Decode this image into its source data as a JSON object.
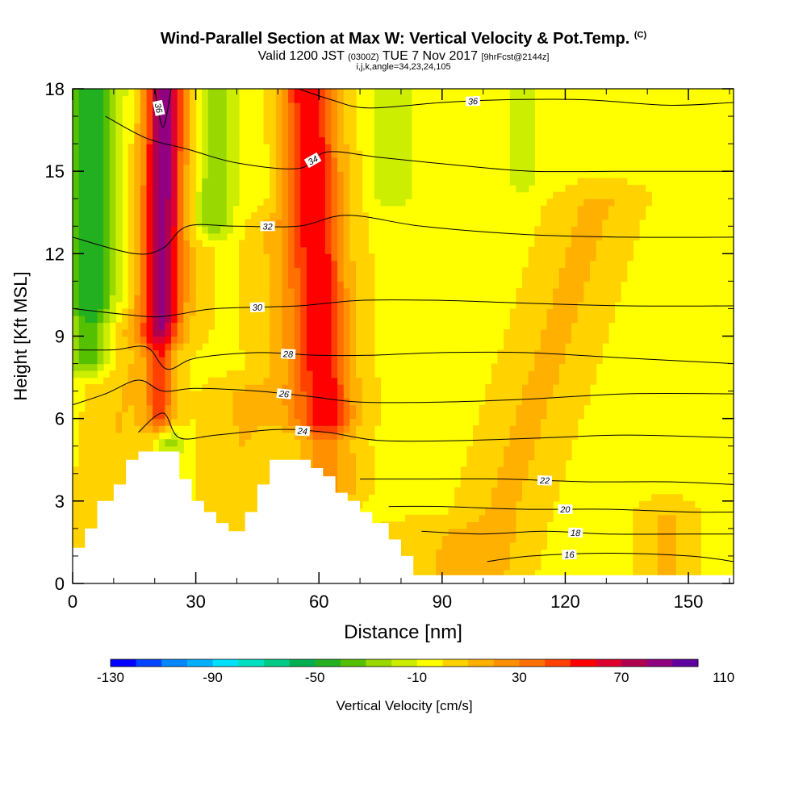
{
  "title": {
    "main": "Wind-Parallel Section at Max W: Vertical Velocity & Pot.Temp.",
    "main_suffix": "(C)",
    "valid_prefix": "Valid 1200 JST",
    "valid_utc": "(0300Z)",
    "valid_date": "TUE 7 Nov 2017",
    "forecast": "[9hrFcst@2144z]",
    "line3": "i,j,k,angle=34,23,24,105"
  },
  "colors": {
    "background": "#ffffff",
    "field_default": "#ffff00"
  },
  "chart_data": {
    "type": "heatmap",
    "xlabel": "Distance [nm]",
    "ylabel": "Height [Kft MSL]",
    "xlim": [
      0,
      161
    ],
    "ylim": [
      0,
      18
    ],
    "xticks": [
      "0",
      "30",
      "60",
      "90",
      "120",
      "150"
    ],
    "yticks": [
      "0",
      "3",
      "6",
      "9",
      "12",
      "15",
      "18"
    ],
    "colorbar": {
      "label": "Vertical Velocity [cm/s]",
      "tick_labels": [
        "-130",
        "-90",
        "-50",
        "-10",
        "30",
        "70",
        "110"
      ],
      "tick_values": [
        -130,
        -90,
        -50,
        -10,
        30,
        70,
        110
      ],
      "colors": [
        "#0000ff",
        "#0044ff",
        "#0088ff",
        "#00b0ff",
        "#00e0ff",
        "#00e0c0",
        "#00cc88",
        "#00b050",
        "#22b020",
        "#55c000",
        "#99d800",
        "#ccee00",
        "#ffff00",
        "#ffd200",
        "#ffb000",
        "#ff9000",
        "#ff7000",
        "#ff4000",
        "#ff0000",
        "#e00030",
        "#b00050",
        "#900080",
        "#6000a0"
      ]
    },
    "terrain_kft": [
      [
        0,
        0
      ],
      [
        0,
        1.3
      ],
      [
        3,
        1.3
      ],
      [
        3,
        2
      ],
      [
        6,
        2
      ],
      [
        6,
        3
      ],
      [
        10,
        3
      ],
      [
        10,
        3.6
      ],
      [
        13,
        3.6
      ],
      [
        13,
        4.5
      ],
      [
        16,
        4.5
      ],
      [
        16,
        4.8
      ],
      [
        26,
        4.8
      ],
      [
        26,
        3.8
      ],
      [
        29,
        3.8
      ],
      [
        29,
        3
      ],
      [
        32,
        3
      ],
      [
        32,
        2.6
      ],
      [
        35,
        2.6
      ],
      [
        35,
        2.2
      ],
      [
        38,
        2.2
      ],
      [
        38,
        1.9
      ],
      [
        42,
        1.9
      ],
      [
        42,
        2.6
      ],
      [
        45,
        2.6
      ],
      [
        45,
        3.6
      ],
      [
        48,
        3.6
      ],
      [
        48,
        4.5
      ],
      [
        58,
        4.5
      ],
      [
        58,
        4.2
      ],
      [
        61,
        4.2
      ],
      [
        61,
        3.9
      ],
      [
        64,
        3.9
      ],
      [
        64,
        3.3
      ],
      [
        67,
        3.3
      ],
      [
        67,
        3
      ],
      [
        70,
        3
      ],
      [
        70,
        2.6
      ],
      [
        73,
        2.6
      ],
      [
        73,
        2.2
      ],
      [
        77,
        2.2
      ],
      [
        77,
        1.6
      ],
      [
        80,
        1.6
      ],
      [
        80,
        1
      ],
      [
        83,
        1
      ],
      [
        83,
        0.3
      ],
      [
        161,
        0.3
      ],
      [
        161,
        0
      ]
    ],
    "wfield": {
      "background_value": -2,
      "features": [
        {
          "x": 22,
          "y_bottom": 6,
          "y_top": 18,
          "value": 55,
          "width_nm": 4,
          "lean_nm": 0
        },
        {
          "x": 20,
          "y_bottom": 9,
          "y_top": 18,
          "value": 35,
          "width_nm": 8,
          "lean_nm": 3
        },
        {
          "x": 63,
          "y_bottom": 3.5,
          "y_top": 18,
          "value": 40,
          "width_nm": 6,
          "lean_nm": -5
        },
        {
          "x": 58,
          "y_bottom": 6,
          "y_top": 18,
          "value": 25,
          "width_nm": 10,
          "lean_nm": -4
        },
        {
          "x": 4,
          "y_bottom": 8,
          "y_top": 18,
          "value": -35,
          "width_nm": 5,
          "lean_nm": 0
        },
        {
          "x": 8,
          "y_bottom": 10,
          "y_top": 18,
          "value": -15,
          "width_nm": 9,
          "lean_nm": 2
        },
        {
          "x": 34,
          "y_bottom": 13,
          "y_top": 18,
          "value": -28,
          "width_nm": 5,
          "lean_nm": 0
        },
        {
          "x": 46,
          "y_bottom": 14,
          "y_top": 18,
          "value": -14,
          "width_nm": 6,
          "lean_nm": 0
        },
        {
          "x": 78,
          "y_bottom": 14,
          "y_top": 18,
          "value": -14,
          "width_nm": 6,
          "lean_nm": 0
        },
        {
          "x": 110,
          "y_bottom": 14.5,
          "y_top": 18,
          "value": -10,
          "width_nm": 6,
          "lean_nm": 0
        },
        {
          "x": 24,
          "y_bottom": 5,
          "y_top": 9,
          "value": -20,
          "width_nm": 3,
          "lean_nm": 0
        },
        {
          "x": 64,
          "y_bottom": 3.6,
          "y_top": 5,
          "value": -14,
          "width_nm": 4,
          "lean_nm": 0
        },
        {
          "x": 100,
          "y_bottom": 0.5,
          "y_top": 14,
          "value": 14,
          "width_nm": 9,
          "lean_nm": 28
        },
        {
          "x": 8,
          "y_bottom": 1.5,
          "y_top": 8,
          "value": 12,
          "width_nm": 7,
          "lean_nm": 5
        },
        {
          "x": 40,
          "y_bottom": 2,
          "y_top": 7,
          "value": 12,
          "width_nm": 8,
          "lean_nm": 2
        },
        {
          "x": 145,
          "y_bottom": 0.4,
          "y_top": 2.5,
          "value": 14,
          "width_nm": 6,
          "lean_nm": 0
        },
        {
          "x": 90,
          "y_bottom": 0.4,
          "y_top": 1.8,
          "value": 10,
          "width_nm": 14,
          "lean_nm": 0
        }
      ]
    },
    "contours": [
      {
        "theta": 16,
        "label": "16",
        "pts": [
          [
            101,
            0.8
          ],
          [
            112,
            1.0
          ],
          [
            130,
            1.1
          ],
          [
            150,
            1.0
          ],
          [
            161,
            0.8
          ]
        ]
      },
      {
        "theta": 18,
        "label": "18",
        "pts": [
          [
            85,
            1.9
          ],
          [
            100,
            1.8
          ],
          [
            115,
            1.9
          ],
          [
            130,
            1.8
          ],
          [
            150,
            1.8
          ],
          [
            161,
            1.8
          ]
        ]
      },
      {
        "theta": 20,
        "label": "20",
        "pts": [
          [
            77,
            2.8
          ],
          [
            90,
            2.8
          ],
          [
            110,
            2.7
          ],
          [
            130,
            2.7
          ],
          [
            150,
            2.6
          ],
          [
            161,
            2.6
          ]
        ]
      },
      {
        "theta": 22,
        "label": "22",
        "pts": [
          [
            70,
            3.8
          ],
          [
            85,
            3.8
          ],
          [
            105,
            3.8
          ],
          [
            125,
            3.7
          ],
          [
            145,
            3.7
          ],
          [
            161,
            3.6
          ]
        ]
      },
      {
        "theta": 24,
        "label": "24",
        "pts": [
          [
            16,
            5.5
          ],
          [
            22,
            6.2
          ],
          [
            26,
            5.3
          ],
          [
            35,
            5.4
          ],
          [
            50,
            5.6
          ],
          [
            62,
            5.5
          ],
          [
            75,
            5.2
          ],
          [
            95,
            5.2
          ],
          [
            115,
            5.3
          ],
          [
            135,
            5.4
          ],
          [
            161,
            5.3
          ]
        ]
      },
      {
        "theta": 26,
        "label": "26",
        "pts": [
          [
            0,
            6.5
          ],
          [
            8,
            6.9
          ],
          [
            16,
            7.4
          ],
          [
            22,
            7.0
          ],
          [
            30,
            7.1
          ],
          [
            45,
            7.0
          ],
          [
            58,
            6.8
          ],
          [
            70,
            6.6
          ],
          [
            90,
            6.6
          ],
          [
            110,
            6.7
          ],
          [
            135,
            6.9
          ],
          [
            161,
            6.9
          ]
        ]
      },
      {
        "theta": 28,
        "label": "28",
        "pts": [
          [
            0,
            8.5
          ],
          [
            10,
            8.5
          ],
          [
            18,
            8.6
          ],
          [
            23,
            7.8
          ],
          [
            30,
            8.2
          ],
          [
            45,
            8.4
          ],
          [
            60,
            8.3
          ],
          [
            72,
            8.3
          ],
          [
            90,
            8.4
          ],
          [
            110,
            8.4
          ],
          [
            135,
            8.2
          ],
          [
            161,
            8.0
          ]
        ]
      },
      {
        "theta": 30,
        "label": "30",
        "pts": [
          [
            0,
            10.0
          ],
          [
            12,
            9.8
          ],
          [
            20,
            9.7
          ],
          [
            26,
            9.8
          ],
          [
            35,
            10.0
          ],
          [
            55,
            10.1
          ],
          [
            70,
            10.3
          ],
          [
            90,
            10.3
          ],
          [
            110,
            10.2
          ],
          [
            135,
            10.1
          ],
          [
            161,
            10.1
          ]
        ]
      },
      {
        "theta": 32,
        "label": "32",
        "pts": [
          [
            0,
            12.6
          ],
          [
            15,
            12.0
          ],
          [
            22,
            12.2
          ],
          [
            28,
            13.0
          ],
          [
            40,
            13.0
          ],
          [
            55,
            13.0
          ],
          [
            67,
            13.4
          ],
          [
            85,
            13.0
          ],
          [
            110,
            12.7
          ],
          [
            135,
            12.6
          ],
          [
            161,
            12.6
          ]
        ]
      },
      {
        "theta": 34,
        "label": "34",
        "pts": [
          [
            8,
            17.0
          ],
          [
            18,
            16.2
          ],
          [
            28,
            15.8
          ],
          [
            40,
            15.3
          ],
          [
            55,
            15.1
          ],
          [
            62,
            15.7
          ],
          [
            75,
            15.5
          ],
          [
            95,
            15.2
          ],
          [
            112,
            15.0
          ],
          [
            135,
            15.0
          ],
          [
            161,
            15.0
          ]
        ]
      },
      {
        "theta": 36,
        "label": "36",
        "pts": [
          [
            20,
            18.0
          ],
          [
            22,
            16.6
          ],
          [
            24,
            18.0
          ]
        ]
      },
      {
        "theta": 36,
        "label": "36",
        "pts": [
          [
            55,
            18.0
          ],
          [
            63,
            17.6
          ],
          [
            72,
            17.3
          ],
          [
            90,
            17.5
          ],
          [
            105,
            17.6
          ],
          [
            125,
            17.6
          ],
          [
            145,
            17.4
          ],
          [
            161,
            17.5
          ]
        ]
      }
    ]
  }
}
